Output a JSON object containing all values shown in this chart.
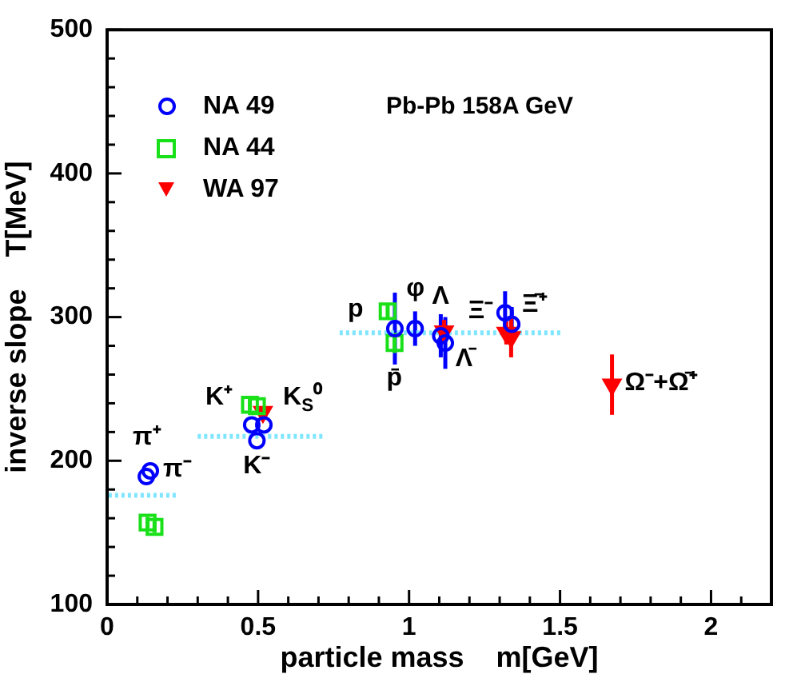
{
  "chart_data": {
    "type": "scatter",
    "xlabel": "particle mass    m[GeV]",
    "ylabel": "inverse slope    T[MeV]",
    "xlim": [
      0,
      2.2
    ],
    "ylim": [
      100,
      500
    ],
    "xticks": [
      0,
      {
        "value": 0.1,
        "label": null
      },
      {
        "value": 0.2,
        "label": null
      },
      {
        "value": 0.3,
        "label": null
      },
      {
        "value": 0.4,
        "label": null
      },
      0.5,
      {
        "value": 0.6,
        "label": null
      },
      {
        "value": 0.7,
        "label": null
      },
      {
        "value": 0.8,
        "label": null
      },
      {
        "value": 0.9,
        "label": null
      },
      1,
      {
        "value": 1.1,
        "label": null
      },
      {
        "value": 1.2,
        "label": null
      },
      {
        "value": 1.3,
        "label": null
      },
      {
        "value": 1.4,
        "label": null
      },
      1.5,
      {
        "value": 1.6,
        "label": null
      },
      {
        "value": 1.7,
        "label": null
      },
      {
        "value": 1.8,
        "label": null
      },
      {
        "value": 1.9,
        "label": null
      },
      2,
      {
        "value": 2.1,
        "label": null
      }
    ],
    "yticks": [
      100,
      {
        "value": 120,
        "label": null
      },
      {
        "value": 140,
        "label": null
      },
      {
        "value": 160,
        "label": null
      },
      {
        "value": 180,
        "label": null
      },
      200,
      {
        "value": 220,
        "label": null
      },
      {
        "value": 240,
        "label": null
      },
      {
        "value": 260,
        "label": null
      },
      {
        "value": 280,
        "label": null
      },
      300,
      {
        "value": 320,
        "label": null
      },
      {
        "value": 340,
        "label": null
      },
      {
        "value": 360,
        "label": null
      },
      {
        "value": 380,
        "label": null
      },
      400,
      {
        "value": 420,
        "label": null
      },
      {
        "value": 440,
        "label": null
      },
      {
        "value": 460,
        "label": null
      },
      {
        "value": 480,
        "label": null
      },
      500
    ],
    "legend": "top left",
    "series": [
      {
        "name": "NA 49",
        "color": "#0000ff",
        "marker": "circle",
        "x": [
          0.13,
          0.143,
          0.479,
          0.519,
          0.496,
          0.953,
          1.02,
          1.105,
          1.12,
          1.318,
          1.34
        ],
        "values": [
          189,
          193,
          225,
          225,
          214,
          292,
          292,
          287,
          282,
          303,
          295
        ],
        "errors": [
          null,
          null,
          null,
          null,
          null,
          25,
          12,
          15,
          18,
          15,
          12
        ]
      },
      {
        "name": "NA 44",
        "color": "#19e019",
        "marker": "square",
        "x": [
          0.134,
          0.157,
          0.473,
          0.496,
          0.929,
          0.952
        ],
        "values": [
          157,
          154,
          239,
          238,
          304,
          282
        ],
        "errors": [
          4,
          4,
          4,
          null,
          5,
          7
        ]
      },
      {
        "name": "WA 97",
        "color": "#ff0000",
        "marker": "triangle",
        "x": [
          0.516,
          1.116,
          1.322,
          1.338,
          1.672
        ],
        "values": [
          234,
          290,
          289,
          286,
          253
        ],
        "errors": [
          null,
          8,
          8,
          14,
          21
        ]
      },
      {
        "type": "line",
        "color": "#80e6ff",
        "line_style": "dotted",
        "marker": "none",
        "x": [
          0.005,
          0.23
        ],
        "values": [
          176,
          176
        ]
      },
      {
        "type": "line",
        "color": "#80e6ff",
        "line_style": "dotted",
        "marker": "none",
        "x": [
          0.3,
          0.72
        ],
        "values": [
          217,
          217
        ]
      },
      {
        "type": "line",
        "color": "#80e6ff",
        "line_style": "dotted",
        "marker": "none",
        "x": [
          0.77,
          1.51
        ],
        "values": [
          289,
          289
        ]
      }
    ],
    "annotations": [
      "Pb-Pb 158A GeV",
      {
        "text": "π⁻",
        "x": 0.143,
        "y": 193
      },
      {
        "text": "π⁺",
        "x": 0.13,
        "y": 189
      },
      {
        "text": "K⁺",
        "x": 0.479,
        "y": 225
      },
      {
        "text": "K$_{S}$⁰",
        "x": 0.519,
        "y": 225
      },
      {
        "text": "K⁻",
        "x": 0.496,
        "y": 214
      },
      {
        "text": "p",
        "x": 0.929,
        "y": 304
      },
      {
        "text": "p̄",
        "x": 0.952,
        "y": 282
      },
      {
        "text": "φ",
        "x": 1.02,
        "y": 292
      },
      {
        "text": "Λ",
        "x": 1.105,
        "y": 287
      },
      {
        "text": "Λ̄",
        "x": 1.12,
        "y": 282
      },
      {
        "text": "Ξ⁻",
        "x": 1.318,
        "y": 303
      },
      {
        "text": "Ξ̄⁺",
        "x": 1.34,
        "y": 295
      },
      {
        "text": "Ω⁻+Ω̄⁺",
        "x": 1.672,
        "y": 253
      }
    ]
  }
}
